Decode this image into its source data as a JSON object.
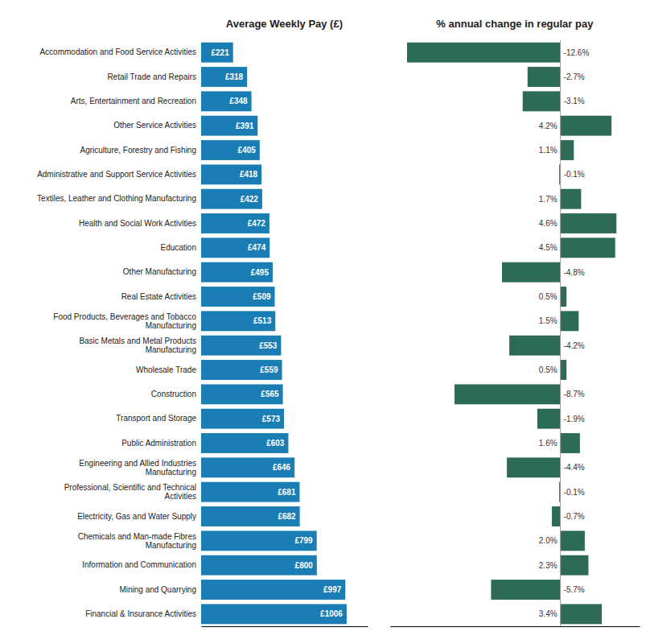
{
  "chart_data": [
    {
      "type": "bar",
      "orientation": "horizontal",
      "title": "Average Weekly Pay (£)",
      "categories": [
        "Accommodation and Food Service Activities",
        "Retail Trade and Repairs",
        "Arts, Entertainment and Recreation",
        "Other Service Activities",
        "Agriculture, Forestry and Fishing",
        "Administrative and Support Service Activities",
        "Textiles, Leather and Clothing Manufacturing",
        "Health and Social Work Activities",
        "Education",
        "Other Manufacturing",
        "Real Estate Activities",
        "Food Products, Beverages and Tobacco\nManufacturing",
        "Basic Metals and Metal Products\nManufacturing",
        "Wholesale Trade",
        "Construction",
        "Transport and Storage",
        "Public Administration",
        "Engineering and Allied Industries\nManufacturing",
        "Professional, Scientific and Technical\nActivities",
        "Electricity, Gas and Water Supply",
        "Chemicals and Man-made Fibres\nManufacturing",
        "Information and Communication",
        "Mining and Quarrying",
        "Financial & Insurance Activities"
      ],
      "values": [
        221,
        318,
        348,
        391,
        405,
        418,
        422,
        472,
        474,
        495,
        509,
        513,
        553,
        559,
        565,
        573,
        603,
        646,
        681,
        682,
        799,
        800,
        997,
        1006
      ],
      "value_labels": [
        "£221",
        "£318",
        "£348",
        "£391",
        "£405",
        "£418",
        "£422",
        "£472",
        "£474",
        "£495",
        "£509",
        "£513",
        "£553",
        "£559",
        "£565",
        "£573",
        "£603",
        "£646",
        "£681",
        "£682",
        "£799",
        "£800",
        "£997",
        "£1006"
      ],
      "color": "#1a7eb5",
      "xlim": [
        0,
        1150
      ],
      "tick_labels": "y",
      "data_labels": true
    },
    {
      "type": "bar",
      "orientation": "horizontal",
      "title": "% annual change in regular pay",
      "categories": [
        null,
        null,
        null,
        null,
        null,
        null,
        null,
        null,
        null,
        null,
        null,
        null,
        null,
        null,
        null,
        null,
        null,
        null,
        null,
        null,
        null,
        null,
        null,
        null
      ],
      "values": [
        -12.6,
        -2.7,
        -3.1,
        4.2,
        1.1,
        -0.1,
        1.7,
        4.6,
        4.5,
        -4.8,
        0.5,
        1.5,
        -4.2,
        0.5,
        -8.7,
        -1.9,
        1.6,
        -4.4,
        -0.1,
        -0.7,
        2.0,
        2.3,
        -5.7,
        3.4
      ],
      "value_labels": [
        "-12.6%",
        "-2.7%",
        "-3.1%",
        "4.2%",
        "1.1%",
        "-0.1%",
        "1.7%",
        "4.6%",
        "4.5%",
        "-4.8%",
        "0.5%",
        "1.5%",
        "-4.2%",
        "0.5%",
        "-8.7%",
        "-1.9%",
        "1.6%",
        "-4.4%",
        "-0.1%",
        "-0.7%",
        "2.0%",
        "2.3%",
        "-5.7%",
        "3.4%"
      ],
      "color": "#2d6b55",
      "xlim": [
        -14,
        6.5
      ],
      "tick_labels": false,
      "data_labels": true
    }
  ]
}
